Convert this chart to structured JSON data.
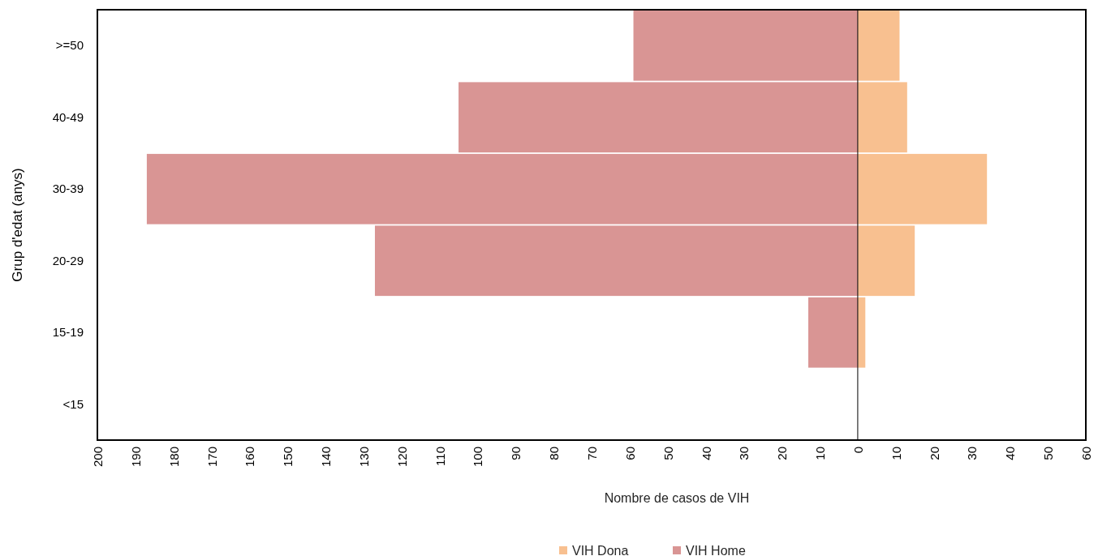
{
  "chart_data": {
    "type": "bar",
    "orientation": "horizontal",
    "xlabel": "Nombre de casos de VIH",
    "ylabel": "Grup d'edat (anys)",
    "categories": [
      ">=50",
      "40-49",
      "30-39",
      "20-29",
      "15-19",
      "<15"
    ],
    "series": [
      {
        "name": "VIH Dona",
        "color": "#f8c090",
        "values": [
          11,
          13,
          34,
          15,
          2,
          0
        ]
      },
      {
        "name": "VIH Home",
        "color": "#d99594",
        "values": [
          -59,
          -105,
          -187,
          -127,
          -13,
          0
        ]
      }
    ],
    "xlim": [
      -200,
      60
    ],
    "xticks": [
      {
        "value": -200,
        "label": "200"
      },
      {
        "value": -190,
        "label": "190"
      },
      {
        "value": -180,
        "label": "180"
      },
      {
        "value": -170,
        "label": "170"
      },
      {
        "value": -160,
        "label": "160"
      },
      {
        "value": -150,
        "label": "150"
      },
      {
        "value": -140,
        "label": "140"
      },
      {
        "value": -130,
        "label": "130"
      },
      {
        "value": -120,
        "label": "120"
      },
      {
        "value": -110,
        "label": "110"
      },
      {
        "value": -100,
        "label": "100"
      },
      {
        "value": -90,
        "label": "90"
      },
      {
        "value": -80,
        "label": "80"
      },
      {
        "value": -70,
        "label": "70"
      },
      {
        "value": -60,
        "label": "60"
      },
      {
        "value": -50,
        "label": "50"
      },
      {
        "value": -40,
        "label": "40"
      },
      {
        "value": -30,
        "label": "30"
      },
      {
        "value": -20,
        "label": "20"
      },
      {
        "value": -10,
        "label": "10"
      },
      0,
      10,
      20,
      30,
      40,
      50,
      60
    ],
    "stacked": true,
    "legend": "bottom"
  }
}
